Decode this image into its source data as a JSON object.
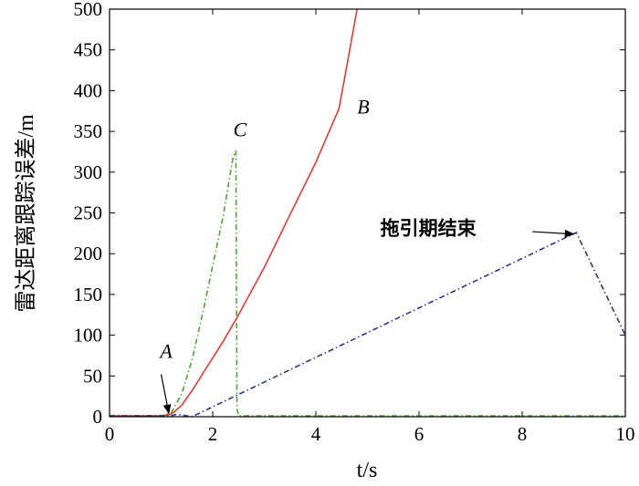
{
  "chart_data": {
    "type": "line",
    "xlabel": "t/s",
    "ylabel": "雷达距离跟踪误差/m",
    "xlim": [
      0,
      10
    ],
    "ylim": [
      0,
      500
    ],
    "xticks": [
      0,
      2,
      4,
      6,
      8,
      10
    ],
    "yticks": [
      0,
      50,
      100,
      150,
      200,
      250,
      300,
      350,
      400,
      450,
      500
    ],
    "grid": false,
    "legend": "none",
    "series": [
      {
        "style": "solid",
        "color": "#e8382f",
        "x": [
          0,
          1.0,
          1.2,
          1.4,
          1.6,
          1.8,
          2.0,
          2.2,
          2.5,
          3.0,
          3.5,
          4.0,
          4.45,
          4.6,
          4.8,
          5.0
        ],
        "y": [
          1,
          1,
          3,
          14,
          32,
          52,
          72,
          92,
          125,
          183,
          248,
          312,
          378,
          430,
          500,
          560
        ]
      },
      {
        "style": "dashdot",
        "color": "#4aa62e",
        "x": [
          0,
          1.0,
          1.2,
          1.4,
          1.6,
          1.8,
          2.0,
          2.2,
          2.4,
          2.45,
          2.47,
          2.5,
          10
        ],
        "y": [
          1,
          1,
          5,
          28,
          70,
          125,
          185,
          245,
          320,
          326,
          10,
          1,
          1
        ]
      },
      {
        "style": "dashdot",
        "color": "#2d3294",
        "x": [
          0,
          1.2,
          1.3,
          1.5,
          1.6,
          9.05,
          10
        ],
        "y": [
          1,
          1,
          3,
          1,
          0,
          226,
          100
        ]
      }
    ],
    "annotations": [
      {
        "text": "A",
        "x": 0.98,
        "y": 72
      },
      {
        "text": "B",
        "x": 4.8,
        "y": 372
      },
      {
        "text": "C",
        "x": 2.4,
        "y": 344
      },
      {
        "text": "拖引期结束",
        "x": 5.25,
        "y": 223
      }
    ],
    "arrows": [
      {
        "from": [
          1.0,
          52
        ],
        "to": [
          1.15,
          4
        ]
      },
      {
        "from": [
          8.2,
          227
        ],
        "to": [
          9.0,
          224
        ]
      }
    ]
  }
}
